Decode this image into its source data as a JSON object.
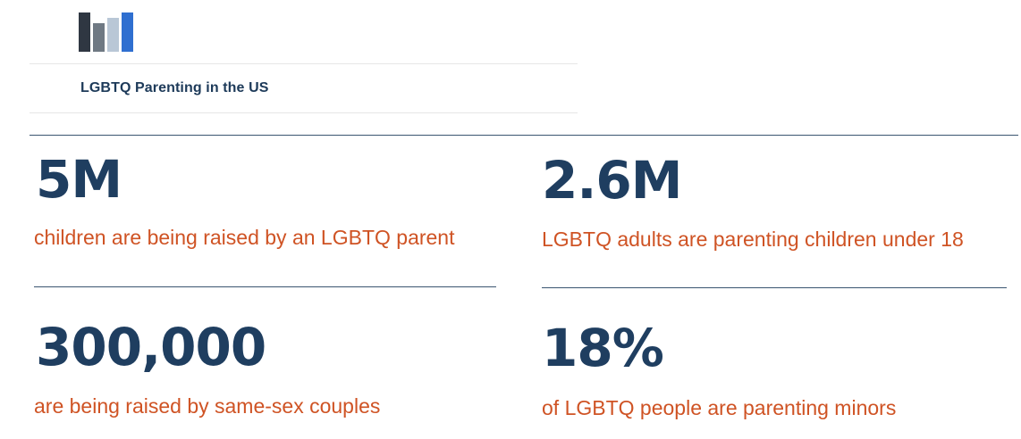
{
  "header": {
    "title": "LGBTQ Parenting in the US",
    "logo_icon": "bar-chart-logo-icon",
    "logo_colors": [
      "#2f3742",
      "#6f7983",
      "#b9c7d6",
      "#2f6fd0"
    ]
  },
  "stats": [
    {
      "value": "5M",
      "caption": "children are being raised by an LGBTQ parent"
    },
    {
      "value": "2.6M",
      "caption": "LGBTQ adults are parenting children under 18"
    },
    {
      "value": "300,000",
      "caption": "are being raised by same-sex couples"
    },
    {
      "value": "18%",
      "caption": "of LGBTQ people are parenting minors"
    }
  ],
  "colors": {
    "number": "#1f3e60",
    "caption": "#cf5324",
    "title": "#1d3a59",
    "rule": "#3a5570"
  }
}
